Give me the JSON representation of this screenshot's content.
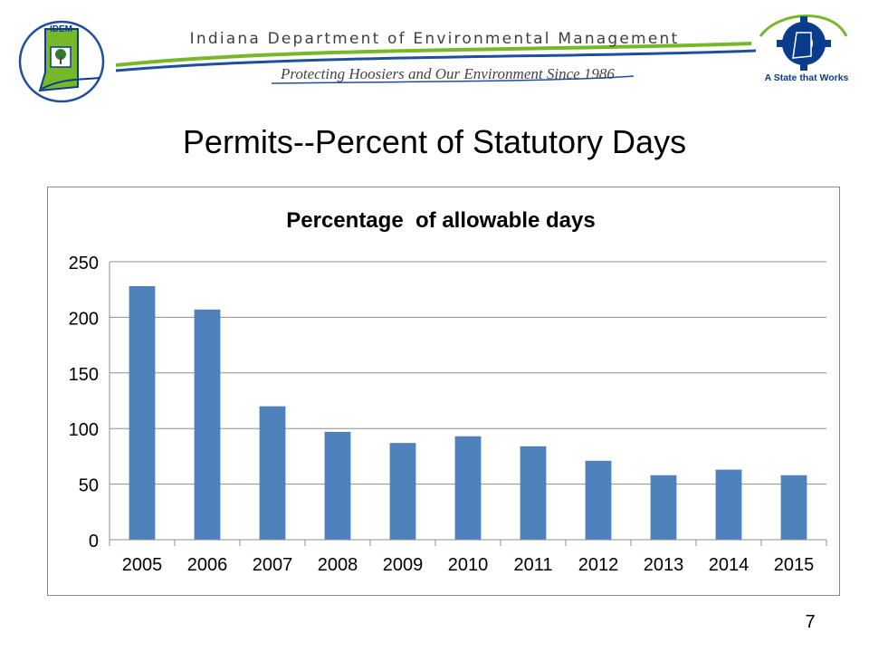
{
  "header": {
    "org_name": "Indiana Department of Environmental Management",
    "tagline": "Protecting Hoosiers and Our Environment Since 1986",
    "logo_badge": "IDEM",
    "state_slogan": "A State that Works",
    "colors": {
      "navy": "#0b3b8c",
      "green": "#76b82a",
      "swoosh_blue": "#1f4f9c"
    },
    "icons": [
      "idem-state-logo-icon",
      "indiana-gear-logo-icon"
    ]
  },
  "slide": {
    "title": "Permits--Percent of Statutory Days",
    "page_number": "7"
  },
  "chart_data": {
    "type": "bar",
    "title": "Percentage  of allowable days",
    "xlabel": "",
    "ylabel": "",
    "categories": [
      "2005",
      "2006",
      "2007",
      "2008",
      "2009",
      "2010",
      "2011",
      "2012",
      "2013",
      "2014",
      "2015"
    ],
    "values": [
      228,
      207,
      120,
      97,
      87,
      93,
      84,
      71,
      58,
      63,
      58
    ],
    "ylim": [
      0,
      250
    ],
    "yticks": [
      "0",
      "50",
      "100",
      "150",
      "200",
      "250"
    ],
    "grid": true,
    "legend": "none",
    "bar_color": "#4f81bd",
    "grid_color": "#8c8c8c"
  }
}
